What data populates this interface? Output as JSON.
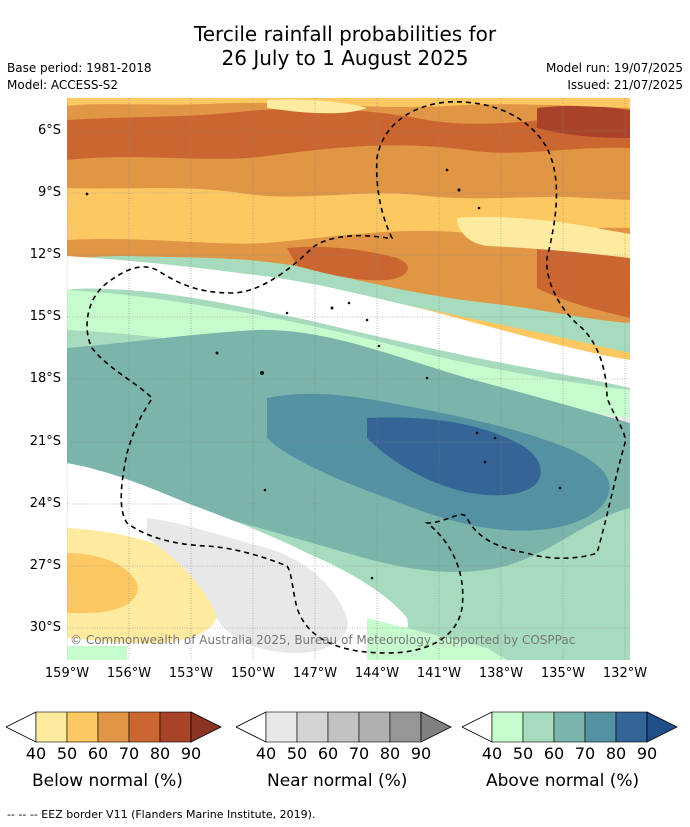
{
  "title_line1": "Tercile rainfall probabilities for",
  "title_line2": "26 July to 1 August 2025",
  "base_period": "Base period: 1981-2018",
  "model": "Model: ACCESS-S2",
  "model_run": "Model run: 19/07/2025",
  "issued": "Issued: 21/07/2025",
  "copyright": "© Commonwealth of Australia 2025, Bureau of Meteorology, supported by COSPPac",
  "lat_labels": [
    "6°S",
    "9°S",
    "12°S",
    "15°S",
    "18°S",
    "21°S",
    "24°S",
    "27°S",
    "30°S"
  ],
  "lon_labels": [
    "159°W",
    "156°W",
    "153°W",
    "150°W",
    "147°W",
    "144°W",
    "141°W",
    "138°W",
    "135°W",
    "132°W"
  ],
  "legend": {
    "below": {
      "title": "Below normal (%)",
      "ticks": [
        "40",
        "50",
        "60",
        "70",
        "80",
        "90"
      ],
      "colors": [
        "#ffeba0",
        "#fdc862",
        "#e09645",
        "#cc6630",
        "#a8432a"
      ]
    },
    "near": {
      "title": "Near normal (%)",
      "ticks": [
        "40",
        "50",
        "60",
        "70",
        "80",
        "90"
      ],
      "colors": [
        "#e8e8e8",
        "#d4d4d4",
        "#c2c2c2",
        "#b0b0b0",
        "#969696"
      ]
    },
    "above": {
      "title": "Above normal (%)",
      "ticks": [
        "40",
        "50",
        "60",
        "70",
        "80",
        "90"
      ],
      "colors": [
        "#c6fccd",
        "#a7dbbd",
        "#7ab4ab",
        "#5491a3",
        "#346596"
      ]
    }
  },
  "footer": "--  --  -- EEZ border V11 (Flanders Marine Institute, 2019)."
}
